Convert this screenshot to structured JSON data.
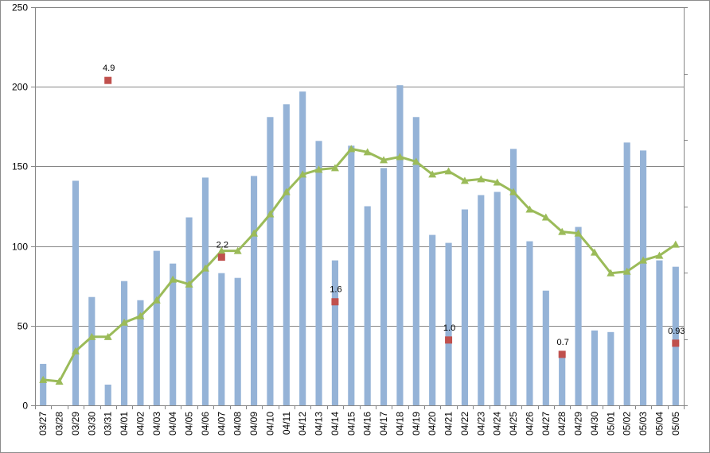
{
  "chart_data": {
    "type": "bar",
    "title": "",
    "xlabel": "",
    "ylabel": "",
    "ylim": [
      0,
      250
    ],
    "y_ticks": [
      "0",
      "50",
      "100",
      "150",
      "200",
      "250"
    ],
    "grid": "horizontal",
    "secondary_axis": "right (unlabeled ticks)",
    "categories": [
      "03/27",
      "03/28",
      "03/29",
      "03/30",
      "03/31",
      "04/01",
      "04/02",
      "04/03",
      "04/04",
      "04/05",
      "04/06",
      "04/07",
      "04/08",
      "04/09",
      "04/10",
      "04/11",
      "04/12",
      "04/13",
      "04/14",
      "04/15",
      "04/16",
      "04/17",
      "04/18",
      "04/19",
      "04/20",
      "04/21",
      "04/22",
      "04/23",
      "04/24",
      "04/25",
      "04/26",
      "04/27",
      "04/28",
      "04/29",
      "04/30",
      "05/01",
      "05/02",
      "05/03",
      "05/04",
      "05/05"
    ],
    "series": [
      {
        "type": "bar",
        "color": "#95B3D7",
        "values": [
          26,
          null,
          141,
          68,
          13,
          78,
          66,
          97,
          89,
          118,
          143,
          83,
          80,
          144,
          181,
          189,
          197,
          166,
          91,
          163,
          125,
          149,
          201,
          181,
          107,
          102,
          123,
          132,
          134,
          161,
          103,
          72,
          33,
          112,
          47,
          46,
          165,
          160,
          91,
          87
        ]
      },
      {
        "type": "line",
        "color": "#9BBB59",
        "marker": "triangle",
        "values": [
          16,
          15,
          34,
          43,
          43,
          52,
          56,
          66,
          79,
          76,
          86,
          97,
          97,
          108,
          120,
          134,
          145,
          148,
          149,
          161,
          159,
          154,
          156,
          153,
          145,
          147,
          141,
          142,
          140,
          134,
          123,
          118,
          109,
          108,
          96,
          83,
          84,
          91,
          94,
          101
        ]
      },
      {
        "type": "scatter",
        "color": "#C0504D",
        "marker": "square",
        "points": [
          {
            "category": "03/31",
            "value": 204,
            "label": "4.9"
          },
          {
            "category": "04/07",
            "value": 93,
            "label": "2.2"
          },
          {
            "category": "04/14",
            "value": 65,
            "label": "1.6"
          },
          {
            "category": "04/21",
            "value": 41,
            "label": "1.0"
          },
          {
            "category": "04/28",
            "value": 32,
            "label": "0.7"
          },
          {
            "category": "05/05",
            "value": 39,
            "label": "0.93"
          }
        ]
      }
    ]
  }
}
